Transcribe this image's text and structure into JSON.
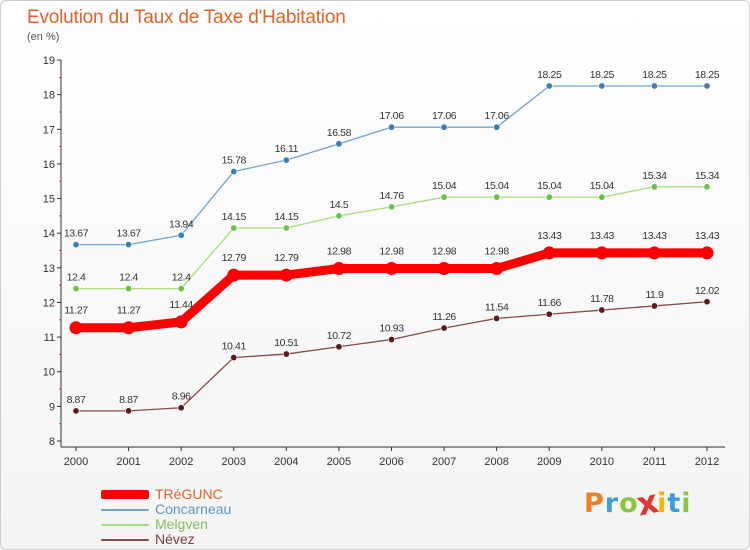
{
  "header": {
    "title": "Evolution du Taux de Taxe d'Habitation",
    "unit": "(en %)"
  },
  "logo": {
    "text": "Proxiti",
    "colors": [
      "#f07f1e",
      "#3aa0d8",
      "#8cc63f",
      "#e3342f",
      "#f7b500",
      "#3aa0d8",
      "#8cc63f"
    ]
  },
  "chart_data": {
    "type": "line",
    "title": "Evolution du Taux de Taxe d'Habitation",
    "ylabel": "(en %)",
    "xlabel": "",
    "x": [
      "2000",
      "2001",
      "2002",
      "2003",
      "2004",
      "2005",
      "2006",
      "2007",
      "2008",
      "2009",
      "2010",
      "2011",
      "2012"
    ],
    "ylim": [
      8,
      19
    ],
    "yticks": [
      "8",
      "9",
      "10",
      "11",
      "12",
      "13",
      "14",
      "15",
      "16",
      "17",
      "18",
      "19"
    ],
    "grid": false,
    "legend_position": "bottom-left",
    "series": [
      {
        "name": "Concarneau",
        "color": "#6fa3cf",
        "point_color": "#3c7fb5",
        "values": [
          13.67,
          13.67,
          13.94,
          15.78,
          16.11,
          16.58,
          17.06,
          17.06,
          17.06,
          18.25,
          18.25,
          18.25,
          18.25
        ],
        "labels": [
          "13.67",
          "13.67",
          "13.94",
          "15.78",
          "16.11",
          "16.58",
          "17.06",
          "17.06",
          "17.06",
          "18.25",
          "18.25",
          "18.25",
          "18.25"
        ]
      },
      {
        "name": "Melgven",
        "color": "#a7dc7a",
        "point_color": "#6cc04a",
        "values": [
          12.4,
          12.4,
          12.4,
          14.15,
          14.15,
          14.5,
          14.76,
          15.04,
          15.04,
          15.04,
          15.04,
          15.34,
          15.34
        ],
        "labels": [
          "12.4",
          "12.4",
          "12.4",
          "14.15",
          "14.15",
          "14.5",
          "14.76",
          "15.04",
          "15.04",
          "15.04",
          "15.04",
          "15.34",
          "15.34"
        ]
      },
      {
        "name": "TRéGUNC",
        "color": "#ff0000",
        "point_color": "#ff0000",
        "values": [
          11.27,
          11.27,
          11.44,
          12.79,
          12.79,
          12.98,
          12.98,
          12.98,
          12.98,
          13.43,
          13.43,
          13.43,
          13.43
        ],
        "labels": [
          "11.27",
          "11.27",
          "11.44",
          "12.79",
          "12.79",
          "12.98",
          "12.98",
          "12.98",
          "12.98",
          "13.43",
          "13.43",
          "13.43",
          "13.43"
        ]
      },
      {
        "name": "Névez",
        "color": "#8a4a4a",
        "point_color": "#5a1a1a",
        "values": [
          8.87,
          8.87,
          8.96,
          10.41,
          10.51,
          10.72,
          10.93,
          11.26,
          11.54,
          11.66,
          11.78,
          11.9,
          12.02
        ],
        "labels": [
          "8.87",
          "8.87",
          "8.96",
          "10.41",
          "10.51",
          "10.72",
          "10.93",
          "11.26",
          "11.54",
          "11.66",
          "11.78",
          "11.9",
          "12.02"
        ]
      }
    ],
    "legend": [
      {
        "name": "TRéGUNC",
        "color": "#ff0000"
      },
      {
        "name": "Concarneau",
        "color": "#6fa3cf"
      },
      {
        "name": "Melgven",
        "color": "#a7dc7a"
      },
      {
        "name": "Névez",
        "color": "#8a4a4a"
      }
    ]
  }
}
